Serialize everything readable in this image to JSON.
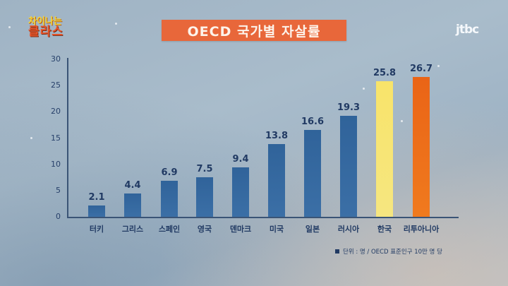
{
  "show_logo": {
    "line1": "차이나는",
    "line2": "클라스"
  },
  "broadcaster_logo": "jtbc",
  "title": "OECD 국가별 자살률",
  "note": "단위 : 명 / OECD 표준인구 10만 명 당",
  "chart_data": {
    "type": "bar",
    "title": "OECD 국가별 자살률",
    "xlabel": "",
    "ylabel": "",
    "ylim": [
      0,
      30
    ],
    "yticks": [
      0,
      5,
      10,
      15,
      20,
      25,
      30
    ],
    "grid": false,
    "categories": [
      "터키",
      "그리스",
      "스페인",
      "영국",
      "덴마크",
      "미국",
      "일본",
      "러시아",
      "한국",
      "리투아니아"
    ],
    "values": [
      2.1,
      4.4,
      6.9,
      7.5,
      9.4,
      13.8,
      16.6,
      19.3,
      25.8,
      26.7
    ],
    "value_labels": [
      "2.1",
      "4.4",
      "6.9",
      "7.5",
      "9.4",
      "13.8",
      "16.6",
      "19.3",
      "25.8",
      "26.7"
    ],
    "colors": [
      "#3367a0",
      "#3367a0",
      "#3367a0",
      "#3367a0",
      "#3367a0",
      "#3367a0",
      "#3367a0",
      "#3367a0",
      "#f7e36c",
      "#ec6b18"
    ],
    "annotation": "단위 : 명 / OECD 표준인구 10만 명 당"
  }
}
